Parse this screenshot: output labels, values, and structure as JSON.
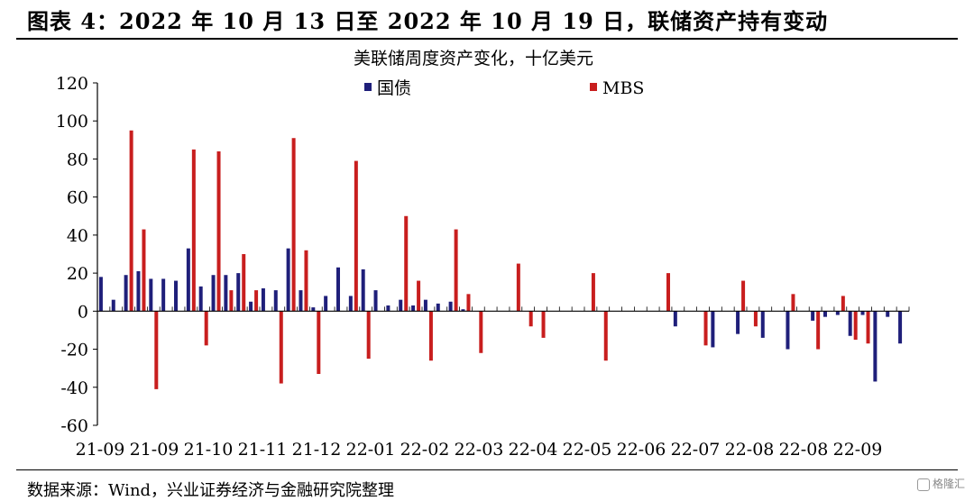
{
  "figure_title": "图表 4：2022 年 10 月 13 日至 2022 年 10 月 19 日，联储资产持有变动",
  "source": "数据来源：Wind，兴业证券经济与金融研究院整理",
  "watermark": "格隆汇",
  "colors": {
    "treasury": "#1f1f7a",
    "mbs": "#c81e1e"
  },
  "chart_data": {
    "type": "bar",
    "title": "美联储周度资产变化，十亿美元",
    "ylim": [
      -60,
      120
    ],
    "yticks": [
      -60,
      -40,
      -20,
      0,
      20,
      40,
      60,
      80,
      100,
      120
    ],
    "xticklabels": [
      "21-09",
      "21-09",
      "21-10",
      "21-11",
      "21-12",
      "22-01",
      "22-02",
      "22-03",
      "22-04",
      "22-05",
      "22-06",
      "22-07",
      "22-08",
      "22-08",
      "22-09"
    ],
    "legend_position": "top",
    "series": [
      {
        "name": "国债",
        "values": [
          18,
          6,
          19,
          21,
          17,
          17,
          16,
          33,
          13,
          19,
          19,
          20,
          5,
          12,
          11,
          33,
          11,
          2,
          8,
          23,
          8,
          22,
          11,
          3,
          6,
          3,
          6,
          4,
          5,
          1,
          0,
          0,
          0,
          0,
          0,
          0,
          0,
          0,
          0,
          0,
          0,
          0,
          0,
          0,
          0,
          0,
          -8,
          0,
          0,
          -19,
          0,
          -12,
          0,
          -14,
          0,
          -20,
          0,
          -5,
          -3,
          -2,
          -13,
          -2,
          -37,
          -3,
          -17
        ]
      },
      {
        "name": "MBS",
        "values": [
          0,
          0,
          95,
          43,
          -41,
          0,
          0,
          85,
          -18,
          84,
          11,
          30,
          11,
          0,
          -38,
          91,
          32,
          -33,
          0,
          0,
          79,
          -25,
          0,
          0,
          50,
          16,
          -26,
          0,
          43,
          9,
          -22,
          0,
          0,
          25,
          -8,
          -14,
          0,
          0,
          0,
          20,
          -26,
          0,
          0,
          0,
          0,
          20,
          0,
          0,
          -18,
          0,
          0,
          16,
          -8,
          0,
          0,
          9,
          0,
          -20,
          0,
          8,
          -15,
          -17,
          0,
          0,
          0
        ]
      }
    ]
  }
}
